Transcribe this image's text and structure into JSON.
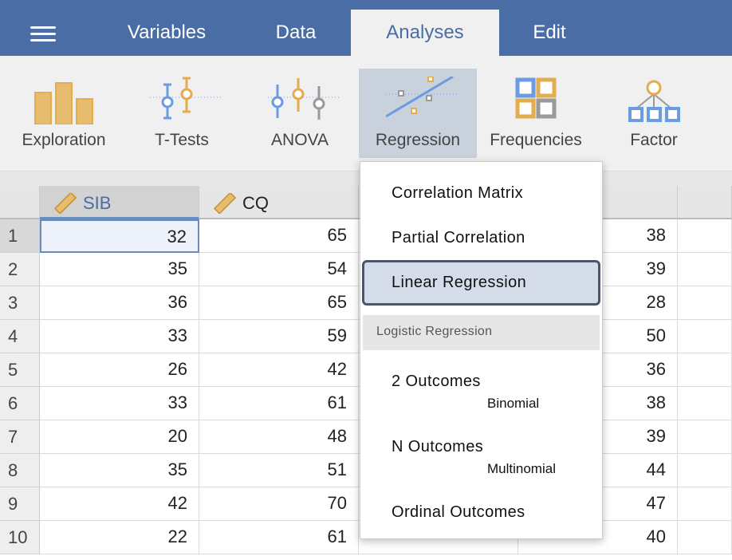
{
  "tabs": [
    {
      "label": "Variables"
    },
    {
      "label": "Data"
    },
    {
      "label": "Analyses",
      "active": true
    },
    {
      "label": "Edit"
    }
  ],
  "toolbar": [
    {
      "label": "Exploration",
      "icon": "bar-chart-icon"
    },
    {
      "label": "T-Tests",
      "icon": "t-test-icon"
    },
    {
      "label": "ANOVA",
      "icon": "anova-icon"
    },
    {
      "label": "Regression",
      "icon": "regression-icon",
      "active": true
    },
    {
      "label": "Frequencies",
      "icon": "frequencies-icon"
    },
    {
      "label": "Factor",
      "icon": "factor-icon"
    }
  ],
  "columns": [
    {
      "name": "SIB",
      "type": "continuous"
    },
    {
      "name": "CQ",
      "type": "continuous"
    }
  ],
  "rows": [
    {
      "n": "1",
      "sib": "32",
      "cq": "65",
      "c4": "38"
    },
    {
      "n": "2",
      "sib": "35",
      "cq": "54",
      "c4": "39"
    },
    {
      "n": "3",
      "sib": "36",
      "cq": "65",
      "c4": "28"
    },
    {
      "n": "4",
      "sib": "33",
      "cq": "59",
      "c4": "50"
    },
    {
      "n": "5",
      "sib": "26",
      "cq": "42",
      "c4": "36"
    },
    {
      "n": "6",
      "sib": "33",
      "cq": "61",
      "c4": "38"
    },
    {
      "n": "7",
      "sib": "20",
      "cq": "48",
      "c4": "39"
    },
    {
      "n": "8",
      "sib": "35",
      "cq": "51",
      "c4": "44"
    },
    {
      "n": "9",
      "sib": "42",
      "cq": "70",
      "c4": "47"
    },
    {
      "n": "10",
      "sib": "22",
      "cq": "61",
      "c4": "40"
    }
  ],
  "menu": {
    "correlation_matrix": "Correlation Matrix",
    "partial_correlation": "Partial Correlation",
    "linear_regression": "Linear Regression",
    "logistic_header": "Logistic Regression",
    "two_outcomes": "2 Outcomes",
    "two_sub": "Binomial",
    "n_outcomes": "N Outcomes",
    "n_sub": "Multinomial",
    "ordinal": "Ordinal Outcomes"
  },
  "colors": {
    "accent": "#4a6da6",
    "orange": "#e2ac4f",
    "blue": "#6b9be0",
    "gray": "#9a9a9a"
  }
}
